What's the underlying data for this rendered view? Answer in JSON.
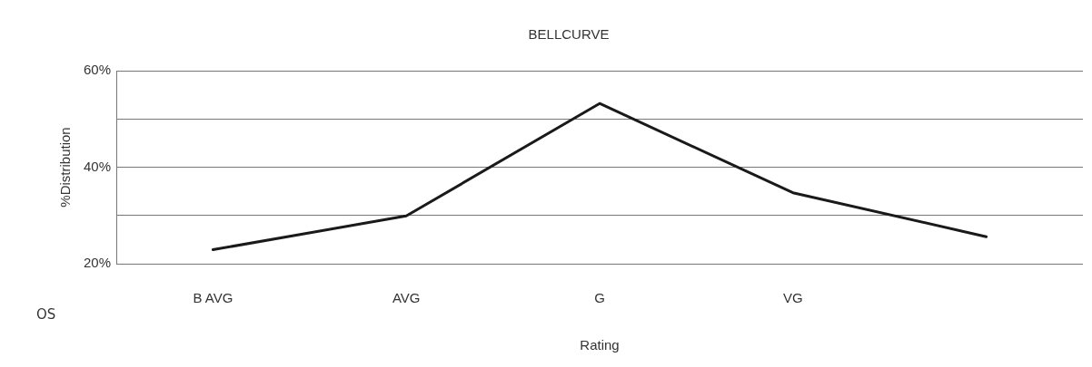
{
  "chart_data": {
    "type": "line",
    "title": "BELLCURVE",
    "xlabel": "Rating",
    "ylabel": "%Distribution",
    "categories": [
      "B AVG",
      "AVG",
      "G",
      "VG",
      null
    ],
    "series": [
      {
        "color": "#1a1a1a",
        "values": [
          22.9,
          29.9,
          53.2,
          34.7,
          25.6
        ]
      }
    ],
    "ylim": [
      20,
      60
    ],
    "yticks": [
      {
        "value": 20,
        "label": "20%"
      },
      {
        "value": 30,
        "label": null
      },
      {
        "value": 40,
        "label": "40%"
      },
      {
        "value": 50,
        "label": null
      },
      {
        "value": 60,
        "label": "60%"
      }
    ],
    "grid": "y",
    "legend": false,
    "marker": "none",
    "line_style": "solid",
    "annotations": [
      "OS"
    ]
  }
}
